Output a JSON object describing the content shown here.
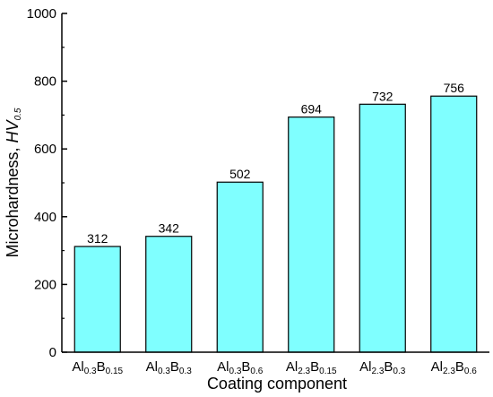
{
  "chart_data": {
    "type": "bar",
    "title": "",
    "xlabel": "Coating component",
    "ylabel": {
      "text": "Microhardness, ",
      "italic": "HV",
      "subscript": "0.5"
    },
    "ylim": [
      0,
      1000
    ],
    "yticks": [
      "0",
      "200",
      "400",
      "600",
      "800",
      "1000"
    ],
    "grid": false,
    "legend": "none",
    "bar_color": "#7fffff",
    "bar_edge_color": "#000000",
    "categories": [
      {
        "parts": [
          {
            "t": "Al",
            "s": false
          },
          {
            "t": "0.3",
            "s": true
          },
          {
            "t": "B",
            "s": false
          },
          {
            "t": "0.15",
            "s": true
          }
        ]
      },
      {
        "parts": [
          {
            "t": "Al",
            "s": false
          },
          {
            "t": "0.3",
            "s": true
          },
          {
            "t": "B",
            "s": false
          },
          {
            "t": "0.3",
            "s": true
          }
        ]
      },
      {
        "parts": [
          {
            "t": "Al",
            "s": false
          },
          {
            "t": "0.3",
            "s": true
          },
          {
            "t": "B",
            "s": false
          },
          {
            "t": "0.6",
            "s": true
          }
        ]
      },
      {
        "parts": [
          {
            "t": "Al",
            "s": false
          },
          {
            "t": "2.3",
            "s": true
          },
          {
            "t": "B",
            "s": false
          },
          {
            "t": "0.15",
            "s": true
          }
        ]
      },
      {
        "parts": [
          {
            "t": "Al",
            "s": false
          },
          {
            "t": "2.3",
            "s": true
          },
          {
            "t": "B",
            "s": false
          },
          {
            "t": "0.3",
            "s": true
          }
        ]
      },
      {
        "parts": [
          {
            "t": "Al",
            "s": false
          },
          {
            "t": "2.3",
            "s": true
          },
          {
            "t": "B",
            "s": false
          },
          {
            "t": "0.6",
            "s": true
          }
        ]
      }
    ],
    "values": [
      312,
      342,
      502,
      694,
      732,
      756
    ],
    "data_labels": [
      "312",
      "342",
      "502",
      "694",
      "732",
      "756"
    ]
  }
}
